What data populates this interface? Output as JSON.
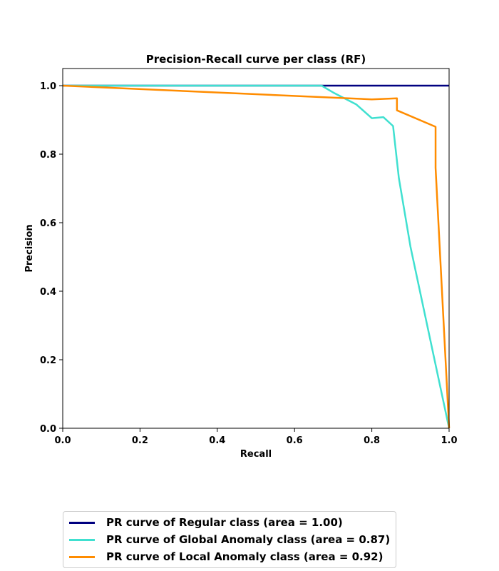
{
  "chart_data": {
    "type": "line",
    "title": "Precision-Recall curve per class (RF)",
    "xlabel": "Recall",
    "ylabel": "Precision",
    "xlim": [
      0.0,
      1.0
    ],
    "ylim": [
      0.0,
      1.05
    ],
    "xticks": [
      "0.0",
      "0.2",
      "0.4",
      "0.6",
      "0.8",
      "1.0"
    ],
    "yticks": [
      "0.0",
      "0.2",
      "0.4",
      "0.6",
      "0.8",
      "1.0"
    ],
    "grid": false,
    "legend_position": "below",
    "series": [
      {
        "name": "PR curve of Regular class (area = 1.00)",
        "color": "#000080",
        "points": [
          [
            0.0,
            1.0
          ],
          [
            1.0,
            1.0
          ]
        ]
      },
      {
        "name": "PR curve of Global Anomaly class (area = 0.87)",
        "color": "#40e0d0",
        "points": [
          [
            0.0,
            1.0
          ],
          [
            0.67,
            1.0
          ],
          [
            0.7,
            0.98
          ],
          [
            0.76,
            0.945
          ],
          [
            0.8,
            0.905
          ],
          [
            0.83,
            0.908
          ],
          [
            0.855,
            0.882
          ],
          [
            0.87,
            0.73
          ],
          [
            0.9,
            0.53
          ],
          [
            1.0,
            0.0
          ]
        ]
      },
      {
        "name": "PR curve of Local Anomaly class (area = 0.92)",
        "color": "#ff8c00",
        "points": [
          [
            0.0,
            1.0
          ],
          [
            0.8,
            0.96
          ],
          [
            0.865,
            0.963
          ],
          [
            0.865,
            0.928
          ],
          [
            0.965,
            0.88
          ],
          [
            0.965,
            0.76
          ],
          [
            1.0,
            0.0
          ]
        ]
      }
    ]
  }
}
